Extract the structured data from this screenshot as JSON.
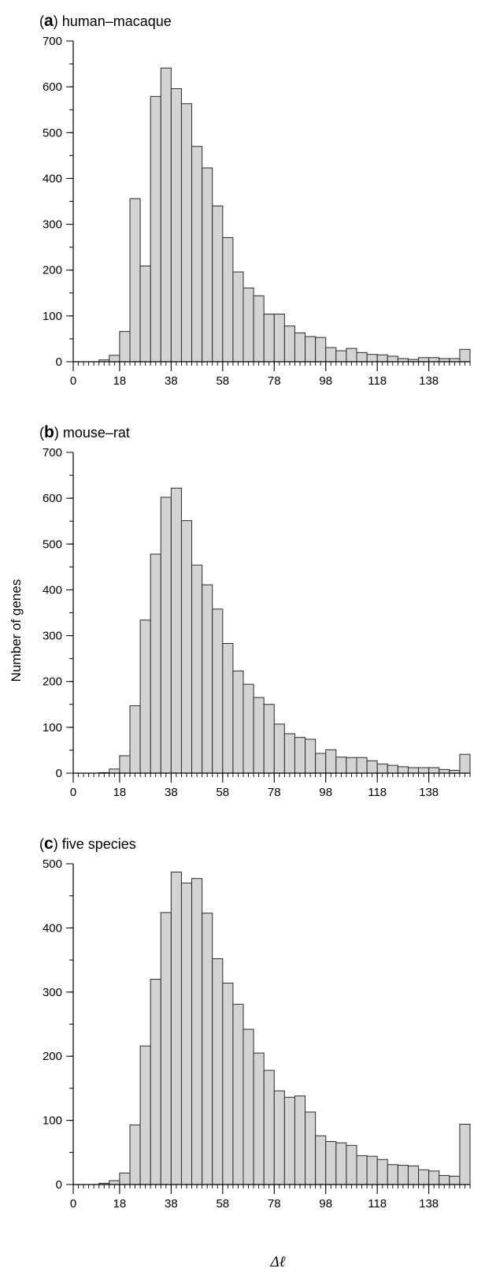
{
  "figure": {
    "ylabel": "Number of genes",
    "xlabel": "Δℓ"
  },
  "chart_data": [
    {
      "type": "bar",
      "panel_letter": "a",
      "title": "human–macaque",
      "xlim": [
        0,
        154
      ],
      "ylim": [
        0,
        700
      ],
      "x_ticks": [
        0,
        18,
        38,
        58,
        78,
        98,
        118,
        138
      ],
      "y_ticks": [
        0,
        100,
        200,
        300,
        400,
        500,
        600,
        700
      ],
      "bin_width": 4,
      "bin_starts": [
        10,
        14,
        18,
        22,
        26,
        30,
        34,
        38,
        42,
        46,
        50,
        54,
        58,
        62,
        66,
        70,
        74,
        78,
        82,
        86,
        90,
        94,
        98,
        102,
        106,
        110,
        114,
        118,
        122,
        126,
        130,
        134,
        138,
        142,
        146,
        150
      ],
      "values": [
        4,
        14,
        66,
        356,
        209,
        579,
        641,
        596,
        563,
        470,
        423,
        340,
        271,
        196,
        161,
        144,
        104,
        104,
        78,
        63,
        55,
        53,
        31,
        24,
        29,
        20,
        16,
        15,
        12,
        7,
        5,
        9,
        9,
        7,
        7,
        27
      ]
    },
    {
      "type": "bar",
      "panel_letter": "b",
      "title": "mouse–rat",
      "xlim": [
        0,
        154
      ],
      "ylim": [
        0,
        700
      ],
      "x_ticks": [
        0,
        18,
        38,
        58,
        78,
        98,
        118,
        138
      ],
      "y_ticks": [
        0,
        100,
        200,
        300,
        400,
        500,
        600,
        700
      ],
      "bin_width": 4,
      "bin_starts": [
        10,
        14,
        18,
        22,
        26,
        30,
        34,
        38,
        42,
        46,
        50,
        54,
        58,
        62,
        66,
        70,
        74,
        78,
        82,
        86,
        90,
        94,
        98,
        102,
        106,
        110,
        114,
        118,
        122,
        126,
        130,
        134,
        138,
        142,
        146,
        150
      ],
      "values": [
        1,
        9,
        38,
        147,
        334,
        478,
        602,
        622,
        551,
        454,
        411,
        358,
        283,
        223,
        194,
        165,
        150,
        107,
        86,
        78,
        74,
        43,
        51,
        35,
        34,
        34,
        27,
        20,
        17,
        14,
        12,
        12,
        12,
        8,
        6,
        41
      ]
    },
    {
      "type": "bar",
      "panel_letter": "c",
      "title": "five species",
      "xlim": [
        0,
        154
      ],
      "ylim": [
        0,
        500
      ],
      "x_ticks": [
        0,
        18,
        38,
        58,
        78,
        98,
        118,
        138
      ],
      "y_ticks": [
        0,
        100,
        200,
        300,
        400,
        500
      ],
      "bin_width": 4,
      "bin_starts": [
        10,
        14,
        18,
        22,
        26,
        30,
        34,
        38,
        42,
        46,
        50,
        54,
        58,
        62,
        66,
        70,
        74,
        78,
        82,
        86,
        90,
        94,
        98,
        102,
        106,
        110,
        114,
        118,
        122,
        126,
        130,
        134,
        138,
        142,
        146,
        150
      ],
      "values": [
        2,
        6,
        18,
        93,
        216,
        320,
        424,
        487,
        470,
        477,
        423,
        352,
        314,
        281,
        242,
        205,
        178,
        146,
        136,
        138,
        113,
        76,
        67,
        65,
        61,
        45,
        44,
        39,
        31,
        30,
        29,
        23,
        21,
        14,
        13,
        94
      ]
    }
  ]
}
